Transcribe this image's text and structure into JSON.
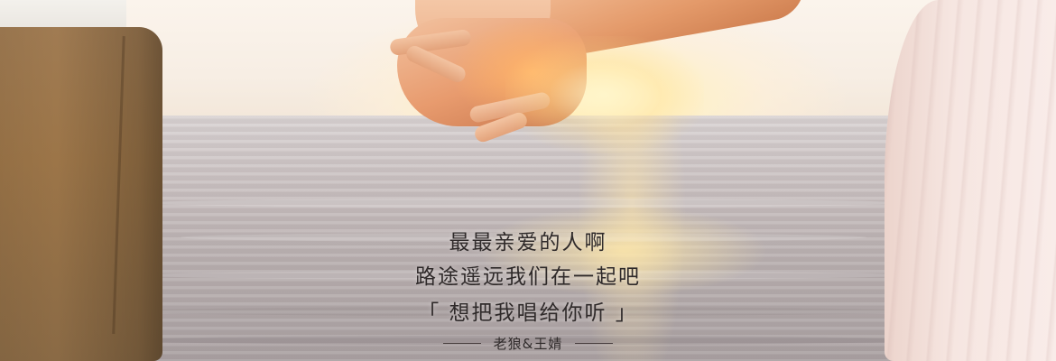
{
  "banner": {
    "lyrics": {
      "line1": "最最亲爱的人啊",
      "line2": "路途遥远我们在一起吧",
      "line3": "「 想把我唱给你听 」"
    },
    "author": "老狼&王婧"
  },
  "colors": {
    "text": "#2f2a2a",
    "sun": "#fff2c6",
    "skin": "#e89b6e"
  }
}
